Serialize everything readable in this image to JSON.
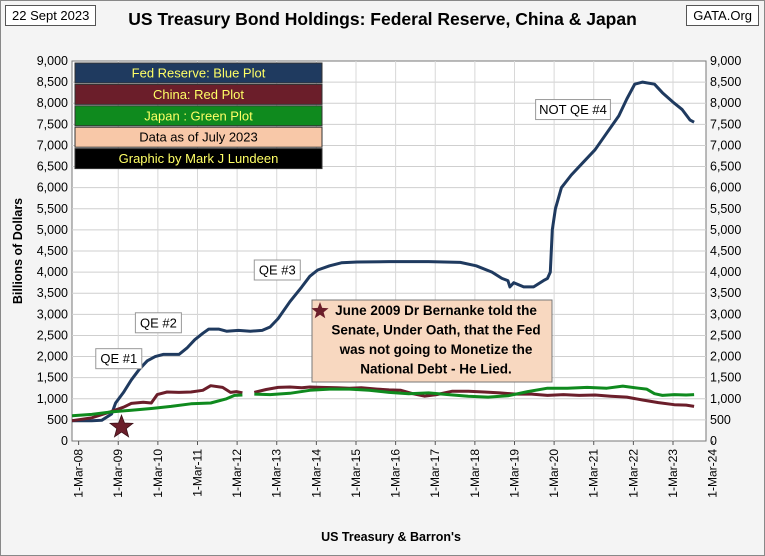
{
  "header": {
    "date": "22 Sept 2023",
    "source": "GATA.Org"
  },
  "chart_data": {
    "type": "line",
    "title": "US Treasury Bond Holdings: Federal Reserve, China & Japan",
    "xlabel": "US Treasury & Barron's",
    "ylabel": "Billions of Dollars",
    "ylim": [
      0,
      9000
    ],
    "yticks": [
      "0",
      "500",
      "1,000",
      "1,500",
      "2,000",
      "2,500",
      "3,000",
      "3,500",
      "4,000",
      "4,500",
      "5,000",
      "5,500",
      "6,000",
      "6,500",
      "7,000",
      "7,500",
      "8,000",
      "8,500",
      "9,000"
    ],
    "xlim": [
      2008.0,
      2024.0
    ],
    "xticks": [
      "1-Mar-08",
      "1-Mar-09",
      "1-Mar-10",
      "1-Mar-11",
      "1-Mar-12",
      "1-Mar-13",
      "1-Mar-14",
      "1-Mar-15",
      "1-Mar-16",
      "1-Mar-17",
      "1-Mar-18",
      "1-Mar-19",
      "1-Mar-20",
      "1-Mar-21",
      "1-Mar-22",
      "1-Mar-23",
      "1-Mar-24"
    ],
    "grid": true,
    "legend": {
      "placement": "top-left",
      "items": [
        {
          "label": "Fed Reserve: Blue Plot",
          "bg": "#1f3a5f",
          "fg": "#ffff66"
        },
        {
          "label": "China: Red Plot",
          "bg": "#6b1e2a",
          "fg": "#ffff66"
        },
        {
          "label": "Japan : Green Plot",
          "bg": "#0f8a1e",
          "fg": "#ffff66"
        },
        {
          "label": "Data as of July 2023",
          "bg": "#f8c8a8",
          "fg": "#000000"
        },
        {
          "label": "Graphic by Mark J Lundeen",
          "bg": "#000000",
          "fg": "#ffff66"
        }
      ]
    },
    "series": [
      {
        "name": "Fed Reserve",
        "color": "#1f3a5f",
        "points": [
          [
            2008.0,
            480
          ],
          [
            2008.5,
            480
          ],
          [
            2008.75,
            490
          ],
          [
            2009.0,
            640
          ],
          [
            2009.1,
            900
          ],
          [
            2009.3,
            1150
          ],
          [
            2009.5,
            1450
          ],
          [
            2009.7,
            1700
          ],
          [
            2009.9,
            1900
          ],
          [
            2010.1,
            2000
          ],
          [
            2010.3,
            2050
          ],
          [
            2010.5,
            2050
          ],
          [
            2010.7,
            2050
          ],
          [
            2010.9,
            2200
          ],
          [
            2011.1,
            2400
          ],
          [
            2011.3,
            2550
          ],
          [
            2011.45,
            2650
          ],
          [
            2011.7,
            2650
          ],
          [
            2011.9,
            2600
          ],
          [
            2012.2,
            2620
          ],
          [
            2012.5,
            2600
          ],
          [
            2012.8,
            2620
          ],
          [
            2013.0,
            2700
          ],
          [
            2013.2,
            2900
          ],
          [
            2013.5,
            3300
          ],
          [
            2013.8,
            3650
          ],
          [
            2014.0,
            3900
          ],
          [
            2014.2,
            4050
          ],
          [
            2014.5,
            4150
          ],
          [
            2014.8,
            4220
          ],
          [
            2015.2,
            4240
          ],
          [
            2016.0,
            4250
          ],
          [
            2017.0,
            4250
          ],
          [
            2017.8,
            4230
          ],
          [
            2018.2,
            4150
          ],
          [
            2018.6,
            4000
          ],
          [
            2018.85,
            3850
          ],
          [
            2019.0,
            3800
          ],
          [
            2019.05,
            3650
          ],
          [
            2019.15,
            3750
          ],
          [
            2019.4,
            3650
          ],
          [
            2019.65,
            3650
          ],
          [
            2019.9,
            3800
          ],
          [
            2020.0,
            3850
          ],
          [
            2020.07,
            4000
          ],
          [
            2020.12,
            5000
          ],
          [
            2020.2,
            5500
          ],
          [
            2020.35,
            6000
          ],
          [
            2020.6,
            6300
          ],
          [
            2020.9,
            6600
          ],
          [
            2021.2,
            6900
          ],
          [
            2021.5,
            7300
          ],
          [
            2021.8,
            7700
          ],
          [
            2022.0,
            8100
          ],
          [
            2022.2,
            8450
          ],
          [
            2022.4,
            8500
          ],
          [
            2022.7,
            8450
          ],
          [
            2022.9,
            8250
          ],
          [
            2023.2,
            8000
          ],
          [
            2023.4,
            7850
          ],
          [
            2023.6,
            7600
          ],
          [
            2023.7,
            7550
          ]
        ]
      },
      {
        "name": "China",
        "color": "#6b1e2a",
        "segments": [
          [
            [
              2008.0,
              480
            ],
            [
              2008.5,
              550
            ],
            [
              2009.0,
              700
            ],
            [
              2009.3,
              800
            ],
            [
              2009.5,
              890
            ],
            [
              2009.8,
              920
            ],
            [
              2010.0,
              900
            ],
            [
              2010.15,
              1100
            ],
            [
              2010.4,
              1160
            ],
            [
              2010.7,
              1150
            ],
            [
              2011.0,
              1160
            ],
            [
              2011.3,
              1200
            ],
            [
              2011.5,
              1310
            ],
            [
              2011.8,
              1270
            ],
            [
              2012.0,
              1150
            ],
            [
              2012.15,
              1170
            ],
            [
              2012.3,
              1140
            ]
          ],
          [
            [
              2012.6,
              1150
            ],
            [
              2012.9,
              1220
            ],
            [
              2013.2,
              1270
            ],
            [
              2013.5,
              1280
            ],
            [
              2013.8,
              1260
            ],
            [
              2014.0,
              1280
            ],
            [
              2014.3,
              1270
            ],
            [
              2014.7,
              1260
            ],
            [
              2015.0,
              1250
            ],
            [
              2015.3,
              1260
            ],
            [
              2015.7,
              1230
            ],
            [
              2016.0,
              1210
            ],
            [
              2016.3,
              1200
            ],
            [
              2016.6,
              1120
            ],
            [
              2016.9,
              1060
            ],
            [
              2017.2,
              1100
            ],
            [
              2017.6,
              1180
            ],
            [
              2018.0,
              1180
            ],
            [
              2018.4,
              1160
            ],
            [
              2018.8,
              1140
            ],
            [
              2019.2,
              1110
            ],
            [
              2019.6,
              1110
            ],
            [
              2020.0,
              1080
            ],
            [
              2020.4,
              1100
            ],
            [
              2020.8,
              1080
            ],
            [
              2021.2,
              1090
            ],
            [
              2021.6,
              1060
            ],
            [
              2022.0,
              1040
            ],
            [
              2022.4,
              970
            ],
            [
              2022.8,
              910
            ],
            [
              2023.2,
              860
            ],
            [
              2023.5,
              850
            ],
            [
              2023.7,
              820
            ]
          ]
        ]
      },
      {
        "name": "Japan",
        "color": "#0f8a1e",
        "segments": [
          [
            [
              2008.0,
              600
            ],
            [
              2008.5,
              630
            ],
            [
              2009.0,
              690
            ],
            [
              2009.5,
              730
            ],
            [
              2010.0,
              770
            ],
            [
              2010.5,
              820
            ],
            [
              2011.0,
              880
            ],
            [
              2011.5,
              900
            ],
            [
              2011.9,
              1000
            ],
            [
              2012.1,
              1080
            ],
            [
              2012.3,
              1090
            ]
          ],
          [
            [
              2012.6,
              1110
            ],
            [
              2013.0,
              1100
            ],
            [
              2013.5,
              1130
            ],
            [
              2014.0,
              1200
            ],
            [
              2014.5,
              1230
            ],
            [
              2015.0,
              1230
            ],
            [
              2015.5,
              1200
            ],
            [
              2016.0,
              1150
            ],
            [
              2016.5,
              1120
            ],
            [
              2017.0,
              1140
            ],
            [
              2017.5,
              1100
            ],
            [
              2018.0,
              1060
            ],
            [
              2018.5,
              1040
            ],
            [
              2019.0,
              1070
            ],
            [
              2019.5,
              1170
            ],
            [
              2020.0,
              1250
            ],
            [
              2020.5,
              1250
            ],
            [
              2021.0,
              1270
            ],
            [
              2021.5,
              1250
            ],
            [
              2021.9,
              1300
            ],
            [
              2022.3,
              1250
            ],
            [
              2022.5,
              1230
            ],
            [
              2022.7,
              1120
            ],
            [
              2022.9,
              1080
            ],
            [
              2023.2,
              1100
            ],
            [
              2023.5,
              1090
            ],
            [
              2023.7,
              1100
            ]
          ]
        ]
      }
    ],
    "annotations": [
      {
        "text": "QE #1",
        "x": 2008.6,
        "y": 1950
      },
      {
        "text": "QE #2",
        "x": 2009.6,
        "y": 2800
      },
      {
        "text": "QE #3",
        "x": 2012.6,
        "y": 4050
      },
      {
        "text": "NOT QE #4",
        "x": 2019.7,
        "y": 7850
      }
    ],
    "marker": {
      "symbol": "star",
      "x": 2009.25,
      "y": 330,
      "color": "#6b1e2a"
    },
    "note": {
      "star_color": "#6b1e2a",
      "lines": [
        "June 2009 Dr Bernanke told the",
        "Senate, Under Oath, that the Fed",
        "was not going to Monetize the",
        "National Debt - He Lied."
      ],
      "bg": "#f8d8c0"
    }
  }
}
